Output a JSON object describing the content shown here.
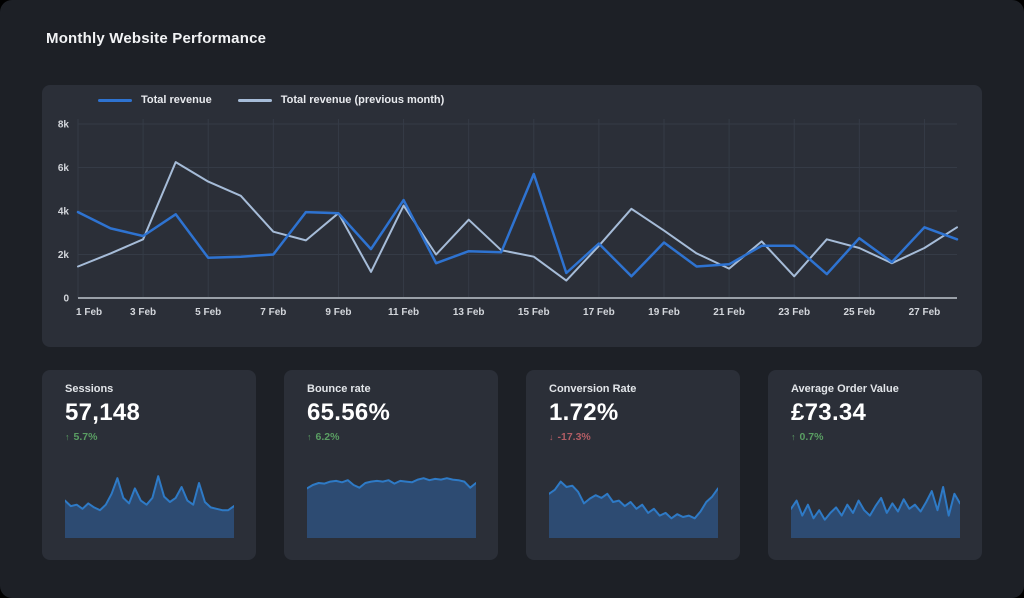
{
  "page": {
    "title": "Monthly Website Performance"
  },
  "colors": {
    "accent_blue": "#2e73d1",
    "previous_line": "#a6bcd8",
    "positive": "#5a9e63",
    "negative": "#b25d64",
    "spark_line": "#2e7ac6",
    "spark_fill": "#2d4b72",
    "grid": "#353b46",
    "axis": "#9aa0a8",
    "tick_text": "#d3d6db",
    "panel_bg": "#2b2f38",
    "page_bg": "#1d2026"
  },
  "legend": [
    {
      "label": "Total revenue",
      "color": "#2e73d1"
    },
    {
      "label": "Total revenue (previous month)",
      "color": "#a6bcd8"
    }
  ],
  "chart_data": [
    {
      "id": "revenue-by-day",
      "type": "line",
      "title": "Monthly Website Performance",
      "x": [
        "1 Feb",
        "2 Feb",
        "3 Feb",
        "4 Feb",
        "5 Feb",
        "6 Feb",
        "7 Feb",
        "8 Feb",
        "9 Feb",
        "10 Feb",
        "11 Feb",
        "12 Feb",
        "13 Feb",
        "14 Feb",
        "15 Feb",
        "16 Feb",
        "17 Feb",
        "18 Feb",
        "19 Feb",
        "20 Feb",
        "21 Feb",
        "22 Feb",
        "23 Feb",
        "24 Feb",
        "25 Feb",
        "26 Feb",
        "27 Feb",
        "28 Feb"
      ],
      "xtick_every": 2,
      "ylim": [
        0,
        8000
      ],
      "ytick_step": 2000,
      "ytick_labels": [
        "0",
        "2k",
        "4k",
        "6k",
        "8k"
      ],
      "grid": true,
      "legend_position": "top-left",
      "series": [
        {
          "name": "Total revenue",
          "color": "#2e73d1",
          "values": [
            3950,
            3200,
            2850,
            3850,
            1850,
            1900,
            2000,
            3950,
            3900,
            2250,
            4500,
            1600,
            2150,
            2100,
            5700,
            1150,
            2500,
            1000,
            2550,
            1450,
            1550,
            2400,
            2400,
            1100,
            2750,
            1650,
            3250,
            2700
          ]
        },
        {
          "name": "Total revenue (previous month)",
          "color": "#a6bcd8",
          "values": [
            1450,
            2050,
            2700,
            6250,
            5350,
            4700,
            3050,
            2650,
            3900,
            1200,
            4250,
            2000,
            3600,
            2200,
            1900,
            800,
            2400,
            4100,
            3100,
            2050,
            1350,
            2600,
            1000,
            2700,
            2300,
            1600,
            2300,
            3250
          ]
        }
      ]
    },
    {
      "id": "sessions-trend",
      "type": "area",
      "ylim": [
        0,
        100
      ],
      "values": [
        52,
        44,
        46,
        40,
        48,
        42,
        38,
        46,
        62,
        85,
        56,
        48,
        70,
        52,
        46,
        56,
        88,
        58,
        50,
        56,
        72,
        52,
        46,
        78,
        50,
        42,
        40,
        38,
        38,
        44
      ]
    },
    {
      "id": "bounce-rate-trend",
      "type": "area",
      "ylim": [
        0,
        100
      ],
      "values": [
        70,
        75,
        78,
        77,
        80,
        81,
        79,
        82,
        75,
        71,
        78,
        80,
        81,
        80,
        82,
        77,
        81,
        80,
        79,
        83,
        85,
        82,
        84,
        83,
        85,
        83,
        82,
        80,
        71,
        78
      ]
    },
    {
      "id": "conversion-rate-trend",
      "type": "area",
      "ylim": [
        0,
        100
      ],
      "values": [
        62,
        68,
        80,
        72,
        74,
        65,
        48,
        55,
        60,
        56,
        62,
        50,
        52,
        44,
        50,
        40,
        46,
        34,
        40,
        30,
        34,
        26,
        32,
        28,
        30,
        26,
        36,
        50,
        58,
        70
      ]
    },
    {
      "id": "average-order-value-trend",
      "type": "area",
      "ylim": [
        0,
        100
      ],
      "values": [
        40,
        52,
        30,
        46,
        26,
        38,
        24,
        34,
        42,
        30,
        46,
        34,
        52,
        38,
        30,
        44,
        56,
        34,
        48,
        36,
        54,
        40,
        46,
        36,
        50,
        66,
        38,
        72,
        30,
        62,
        48
      ]
    }
  ],
  "cards": [
    {
      "label": "Sessions",
      "value": "57,148",
      "arrow": "↑",
      "delta": "5.7%",
      "direction": "up"
    },
    {
      "label": "Bounce rate",
      "value": "65.56%",
      "arrow": "↑",
      "delta": "6.2%",
      "direction": "up"
    },
    {
      "label": "Conversion Rate",
      "value": "1.72%",
      "arrow": "↓",
      "delta": "-17.3%",
      "direction": "down"
    },
    {
      "label": "Average Order Value",
      "value": "£73.34",
      "arrow": "↑",
      "delta": "0.7%",
      "direction": "up"
    }
  ]
}
